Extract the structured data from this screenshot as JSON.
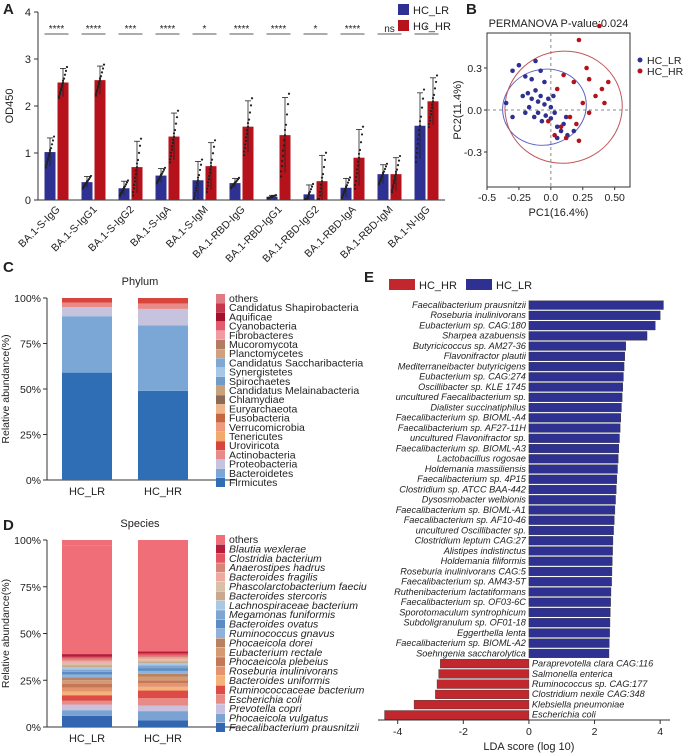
{
  "panels": {
    "A": "A",
    "B": "B",
    "C": "C",
    "D": "D",
    "E": "E"
  },
  "colors": {
    "lr": "#2e3192",
    "hr": "#b5121b",
    "lda_lr": "#2e3192",
    "lda_hr": "#c1272d"
  },
  "chart_data": [
    {
      "id": "A",
      "type": "bar",
      "ylabel": "OD450",
      "ylim": [
        0,
        4
      ],
      "yticks": [
        "0",
        "1",
        "2",
        "3",
        "4"
      ],
      "categories": [
        "BA.1-S-IgG",
        "BA.1-S-IgG1",
        "BA.1-S-IgG2",
        "BA.1-S-IgA",
        "BA.1-S-IgM",
        "BA.1-RBD-IgG",
        "BA.1-RBD-IgG1",
        "BA.1-RBD-IgG2",
        "BA.1-RBD-IgA",
        "BA.1-RBD-IgM",
        "BA.1-N-IgG"
      ],
      "series": [
        {
          "name": "HC_LR",
          "values": [
            1.02,
            0.38,
            0.25,
            0.52,
            0.42,
            0.36,
            0.07,
            0.12,
            0.26,
            0.55,
            1.58
          ],
          "err": [
            0.3,
            0.12,
            0.15,
            0.15,
            0.4,
            0.1,
            0.03,
            0.2,
            0.2,
            0.2,
            0.7
          ]
        },
        {
          "name": "HC_HR",
          "values": [
            2.5,
            2.55,
            0.7,
            1.35,
            0.72,
            1.56,
            1.38,
            0.4,
            0.9,
            0.55,
            2.1
          ],
          "err": [
            0.3,
            0.3,
            0.55,
            0.5,
            0.5,
            0.55,
            0.8,
            0.55,
            0.6,
            0.35,
            0.5
          ]
        }
      ],
      "significance": [
        "****",
        "****",
        "***",
        "****",
        "*",
        "****",
        "****",
        "*",
        "****",
        "ns",
        "*"
      ],
      "legend": [
        "HC_LR",
        "HC_HR"
      ]
    },
    {
      "id": "B",
      "type": "scatter",
      "title": "PERMANOVA P-value:0.024",
      "xlabel": "PC1(16.4%)",
      "ylabel": "PC2(11.4%)",
      "xlim": [
        -0.5,
        0.62
      ],
      "ylim": [
        -0.55,
        0.55
      ],
      "xticks": [
        "-0.5",
        "-0.25",
        "0.0",
        "0.25",
        "0.50"
      ],
      "xtick_values": [
        -0.5,
        -0.25,
        0.0,
        0.25,
        0.5
      ],
      "yticks": [
        "0.3",
        "0.0",
        "-0.3"
      ],
      "ytick_values": [
        0.3,
        0.0,
        -0.3
      ],
      "legend": [
        "HC_LR",
        "HC_HR"
      ],
      "ellipses": [
        {
          "group": "HC_LR",
          "cx": -0.05,
          "cy": 0.02,
          "rx": 0.33,
          "ry": 0.27,
          "angle": -15
        },
        {
          "group": "HC_HR",
          "cx": 0.1,
          "cy": 0.02,
          "rx": 0.46,
          "ry": 0.4,
          "angle": -10
        }
      ],
      "points_lr": [
        [
          -0.3,
          0.28
        ],
        [
          -0.25,
          0.32
        ],
        [
          -0.2,
          0.24
        ],
        [
          -0.15,
          0.22
        ],
        [
          -0.12,
          0.35
        ],
        [
          -0.08,
          0.28
        ],
        [
          -0.05,
          0.2
        ],
        [
          -0.22,
          0.1
        ],
        [
          -0.18,
          0.12
        ],
        [
          -0.15,
          0.08
        ],
        [
          -0.12,
          0.14
        ],
        [
          -0.1,
          0.06
        ],
        [
          -0.08,
          0.1
        ],
        [
          -0.05,
          0.04
        ],
        [
          -0.02,
          0.08
        ],
        [
          0.0,
          0.02
        ],
        [
          0.02,
          0.1
        ],
        [
          -0.2,
          -0.02
        ],
        [
          -0.17,
          0.02
        ],
        [
          -0.13,
          -0.05
        ],
        [
          -0.1,
          -0.02
        ],
        [
          -0.07,
          -0.08
        ],
        [
          -0.04,
          -0.04
        ],
        [
          0.0,
          -0.06
        ],
        [
          0.03,
          -0.02
        ],
        [
          0.05,
          -0.12
        ],
        [
          0.08,
          -0.15
        ],
        [
          0.1,
          -0.1
        ],
        [
          0.13,
          -0.18
        ],
        [
          0.05,
          -0.2
        ],
        [
          -0.3,
          -0.05
        ],
        [
          -0.35,
          0.05
        ],
        [
          0.18,
          -0.15
        ],
        [
          0.12,
          -0.05
        ]
      ],
      "points_hr": [
        [
          0.38,
          0.6
        ],
        [
          0.22,
          0.5
        ],
        [
          0.28,
          0.3
        ],
        [
          0.3,
          0.22
        ],
        [
          0.45,
          0.2
        ],
        [
          0.4,
          0.15
        ],
        [
          0.35,
          0.1
        ],
        [
          0.25,
          0.05
        ],
        [
          0.18,
          0.2
        ],
        [
          0.1,
          0.25
        ],
        [
          0.05,
          0.15
        ],
        [
          0.15,
          -0.05
        ],
        [
          0.2,
          -0.1
        ],
        [
          0.3,
          -0.02
        ],
        [
          0.08,
          -0.12
        ],
        [
          0.03,
          -0.18
        ],
        [
          0.12,
          -0.2
        ],
        [
          -0.02,
          -0.08
        ],
        [
          0.22,
          -0.22
        ],
        [
          0.42,
          0.05
        ]
      ]
    },
    {
      "id": "C",
      "type": "bar",
      "stacked": true,
      "title": "Phylum",
      "ylabel": "Relative abundance(%)",
      "yticks": [
        "0%",
        "25%",
        "50%",
        "75%",
        "100%"
      ],
      "categories": [
        "HC_LR",
        "HC_HR"
      ],
      "legend": [
        "others",
        "Candidatus Shapirobacteria",
        "Aquificae",
        "Cyanobacteria",
        "Fibrobacteres",
        "Mucoromycota",
        "Planctomycetes",
        "Candidatus Saccharibacteria",
        "Synergistetes",
        "Spirochaetes",
        "Candidatus Melainabacteria",
        "Chlamydiae",
        "Euryarchaeota",
        "Fusobacteria",
        "Verrucomicrobia",
        "Tenericutes",
        "Uroviricota",
        "Actinobacteria",
        "Proteobacteria",
        "Bacteroidetes",
        "Firmicutes"
      ],
      "legend_colors": [
        "#e07b85",
        "#c7364a",
        "#a3102e",
        "#e35b6e",
        "#f19aa4",
        "#b27b64",
        "#d1a07d",
        "#7fa8d3",
        "#a7c7e7",
        "#6f9cc9",
        "#c9a27b",
        "#8c6a56",
        "#f0b48a",
        "#c5663e",
        "#ee9a7c",
        "#f2a96e",
        "#d8453d",
        "#ea8a88",
        "#c6c3de",
        "#7aa7d6",
        "#2f6db5"
      ],
      "series": [
        {
          "name": "Firmicutes",
          "values": [
            59,
            49
          ],
          "color": "#2f6db5"
        },
        {
          "name": "Bacteroidetes",
          "values": [
            31,
            36
          ],
          "color": "#7aa7d6"
        },
        {
          "name": "Proteobacteria",
          "values": [
            5,
            9
          ],
          "color": "#c6c3de"
        },
        {
          "name": "Actinobacteria",
          "values": [
            2.5,
            3
          ],
          "color": "#ea8a88"
        },
        {
          "name": "others",
          "values": [
            2.5,
            3
          ],
          "color": "#d8453d"
        }
      ]
    },
    {
      "id": "D",
      "type": "bar",
      "stacked": true,
      "title": "Species",
      "ylabel": "Relative abundance(%)",
      "yticks": [
        "0%",
        "25%",
        "50%",
        "75%",
        "100%"
      ],
      "categories": [
        "HC_LR",
        "HC_HR"
      ],
      "legend": [
        "others",
        "Blautia wexlerae",
        "Clostridia bacterium",
        "Anaerostipes hadrus",
        "Bacteroides fragilis",
        "Phascolarctobacterium faeciu",
        "Bacteroides stercoris",
        "Lachnospiraceae bacterium",
        "Megamonas funiformis",
        "Bacteroides ovatus",
        "Ruminococcus gnavus",
        "Phocaeicola dorei",
        "Eubacterium rectale",
        "Phocaeicola plebeius",
        "Roseburia inulinivorans",
        "Bacteroides uniformis",
        "Ruminococcaceae bacterium",
        "Escherichia coli",
        "Prevotella copri",
        "Phocaeicola vulgatus",
        "Faecalibacterium prausnitzii"
      ],
      "legend_colors": [
        "#f06e78",
        "#b71c3a",
        "#e35561",
        "#d9867a",
        "#f0a9a0",
        "#d9c0a8",
        "#c9a88d",
        "#a8c8e4",
        "#7ea6d0",
        "#5b8cc4",
        "#8fb2dc",
        "#b68262",
        "#d59a72",
        "#c47858",
        "#e3936d",
        "#f3b37a",
        "#de4b47",
        "#e88a86",
        "#c8c0dd",
        "#7aa3d4",
        "#3266b0"
      ],
      "series": [
        {
          "name": "Faecalibacterium prausnitzii",
          "values": [
            6,
            3.5
          ],
          "color": "#3266b0"
        },
        {
          "name": "Phocaeicola vulgatus",
          "values": [
            3,
            5
          ],
          "color": "#7aa3d4"
        },
        {
          "name": "Prevotella copri",
          "values": [
            3,
            3
          ],
          "color": "#c8c0dd"
        },
        {
          "name": "Escherichia coli",
          "values": [
            2,
            4
          ],
          "color": "#e88a86"
        },
        {
          "name": "Ruminococcaceae bacterium",
          "values": [
            3,
            4
          ],
          "color": "#de4b47"
        },
        {
          "name": "Bacteroides uniformis",
          "values": [
            2,
            2
          ],
          "color": "#f3b37a"
        },
        {
          "name": "Roseburia inulinivorans",
          "values": [
            2,
            2
          ],
          "color": "#e3936d"
        },
        {
          "name": "Phocaeicola plebeius",
          "values": [
            2,
            1.5
          ],
          "color": "#c47858"
        },
        {
          "name": "Eubacterium rectale",
          "values": [
            2,
            2
          ],
          "color": "#d59a72"
        },
        {
          "name": "Phocaeicola dorei",
          "values": [
            1.5,
            1.5
          ],
          "color": "#b68262"
        },
        {
          "name": "Ruminococcus gnavus",
          "values": [
            1.5,
            1.5
          ],
          "color": "#8fb2dc"
        },
        {
          "name": "Bacteroides ovatus",
          "values": [
            1.5,
            1.5
          ],
          "color": "#5b8cc4"
        },
        {
          "name": "Megamonas funiformis",
          "values": [
            1.2,
            1.5
          ],
          "color": "#7ea6d0"
        },
        {
          "name": "Lachnospiraceae bacterium",
          "values": [
            1.2,
            1.2
          ],
          "color": "#a8c8e4"
        },
        {
          "name": "Bacteroides stercoris",
          "values": [
            1.2,
            1
          ],
          "color": "#c9a88d"
        },
        {
          "name": "Phascolarctobacterium faeciu",
          "values": [
            1.2,
            1
          ],
          "color": "#d9c0a8"
        },
        {
          "name": "Bacteroides fragilis",
          "values": [
            1.2,
            1
          ],
          "color": "#f0a9a0"
        },
        {
          "name": "Anaerostipes hadrus",
          "values": [
            1,
            1
          ],
          "color": "#d9867a"
        },
        {
          "name": "Clostridia bacterium",
          "values": [
            1,
            1
          ],
          "color": "#e35561"
        },
        {
          "name": "Blautia wexlerae",
          "values": [
            1.5,
            1.3
          ],
          "color": "#b71c3a"
        },
        {
          "name": "others",
          "values": [
            58,
            60
          ],
          "color": "#f06e78"
        }
      ]
    },
    {
      "id": "E",
      "type": "bar",
      "orientation": "horizontal",
      "xlabel": "LDA score (log 10)",
      "xlim": [
        -4.6,
        4.3
      ],
      "xticks": [
        "-4",
        "-2",
        "0",
        "2",
        "4"
      ],
      "xtick_values": [
        -4,
        -2,
        0,
        2,
        4
      ],
      "legend": [
        "HC_HR",
        "HC_LR"
      ],
      "categories": [
        "Faecalibacterium prausnitzii",
        "Roseburia inulinivorans",
        "Eubacterium sp. CAG:180",
        "Sharpea azabuensis",
        "Butyricicoccus sp. AM27-36",
        "Flavonifractor plautii",
        "Mediterraneibacter butyricigens",
        "Eubacterium sp. CAG:274",
        "Oscillibacter sp. KLE 1745",
        "uncultured Faecalibacterium sp.",
        "Dialister succinatiphilus",
        "Faecalibacterium sp. BIOML-A4",
        "Faecalibacterium sp. AF27-11H",
        "uncultured Flavonifractor sp.",
        "Faecalibacterium sp. BIOML-A3",
        "Lactobacillus rogosae",
        "Holdemania massiliensis",
        "Faecalibacterium sp. 4P15",
        "Clostridium sp. ATCC BAA-442",
        "Dysosmobacter welbionis",
        "Faecalibacterium sp. BIOML-A1",
        "Faecalibacterium sp. AF10-46",
        "uncultured Oscillibacter sp.",
        "Clostridium leptum CAG:27",
        "Alistipes indistinctus",
        "Holdemania filiformis",
        "Roseburia inulinivorans CAG:5",
        "Faecalibacterium sp. AM43-5T",
        "Ruthenibacterium lactatiformans",
        "Faecalibacterium sp. OF03-6C",
        "Sporotomaculum syntrophicum",
        "Subdoligranulum sp. OF01-18",
        "Eggerthella lenta",
        "Faecalibacterium sp. BIOML-A2",
        "Soehngenia saccharolytica",
        "Paraprevotella clara CAG:116",
        "Salmonella enterica",
        "Ruminococcus sp. CAG:177",
        "Clostridium nexile CAG:348",
        "Klebsiella pneumoniae",
        "Escherichia coli"
      ],
      "values": [
        4.1,
        4.0,
        3.85,
        3.6,
        2.95,
        2.92,
        2.9,
        2.88,
        2.86,
        2.84,
        2.82,
        2.8,
        2.78,
        2.76,
        2.74,
        2.72,
        2.7,
        2.68,
        2.66,
        2.64,
        2.62,
        2.6,
        2.58,
        2.56,
        2.55,
        2.54,
        2.53,
        2.52,
        2.5,
        2.49,
        2.48,
        2.47,
        2.46,
        2.45,
        2.44,
        -2.7,
        -2.75,
        -2.8,
        -2.85,
        -3.5,
        -4.4
      ]
    }
  ]
}
